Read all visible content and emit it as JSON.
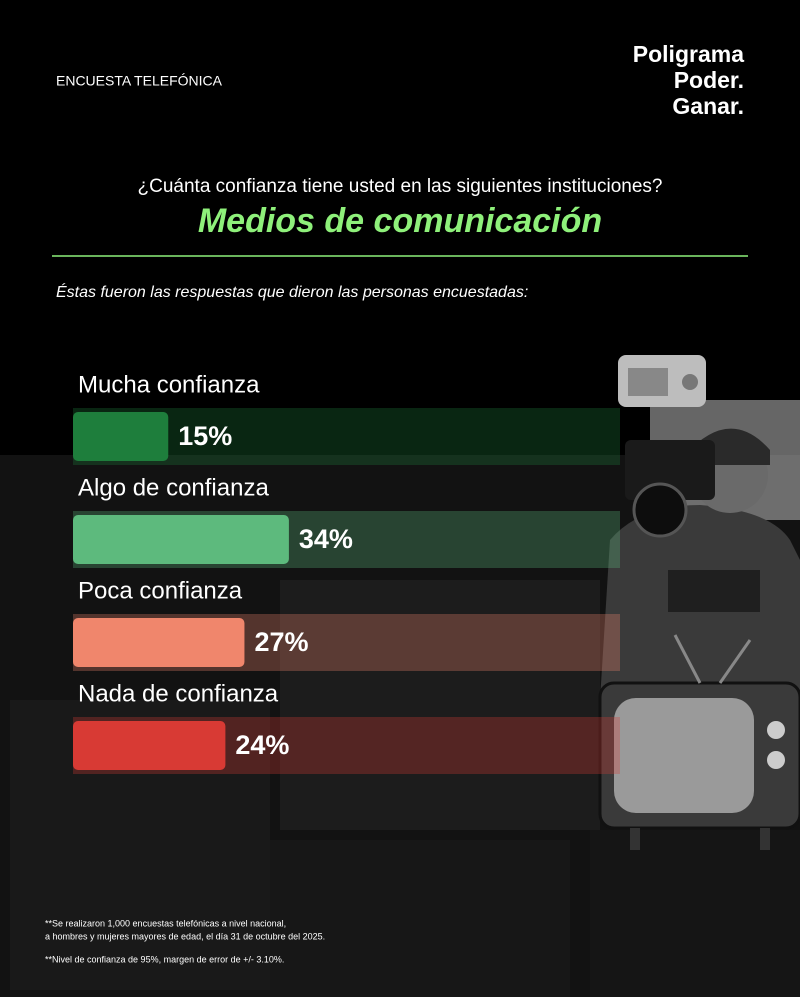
{
  "header": {
    "survey_type": "ENCUESTA TELEFÓNICA",
    "logo": [
      "Poligrama",
      "Poder.",
      "Ganar."
    ]
  },
  "chart_data": {
    "type": "bar",
    "orientation": "horizontal",
    "title": "¿Cuánta confianza tiene usted en las siguientes instituciones?",
    "subtitle": "Medios de comunicación",
    "description": "Éstas fueron las respuestas que dieron las personas encuestadas:",
    "categories": [
      "Mucha confianza",
      "Algo de confianza",
      "Poca confianza",
      "Nada de confianza"
    ],
    "values": [
      15,
      34,
      27,
      24
    ],
    "value_labels": [
      "15%",
      "34%",
      "27%",
      "24%"
    ],
    "colors": [
      "#1e7e3c",
      "#5dba7d",
      "#f0866c",
      "#d83a34"
    ],
    "xlim": [
      0,
      100
    ]
  },
  "footnotes": [
    "**Se realizaron 1,000 encuestas telefónicas a nivel nacional,",
    "a hombres y mujeres mayores de edad, el día 31 de octubre del 2025.",
    "**Nivel de confianza de 95%, margen de error de +/- 3.10%."
  ]
}
